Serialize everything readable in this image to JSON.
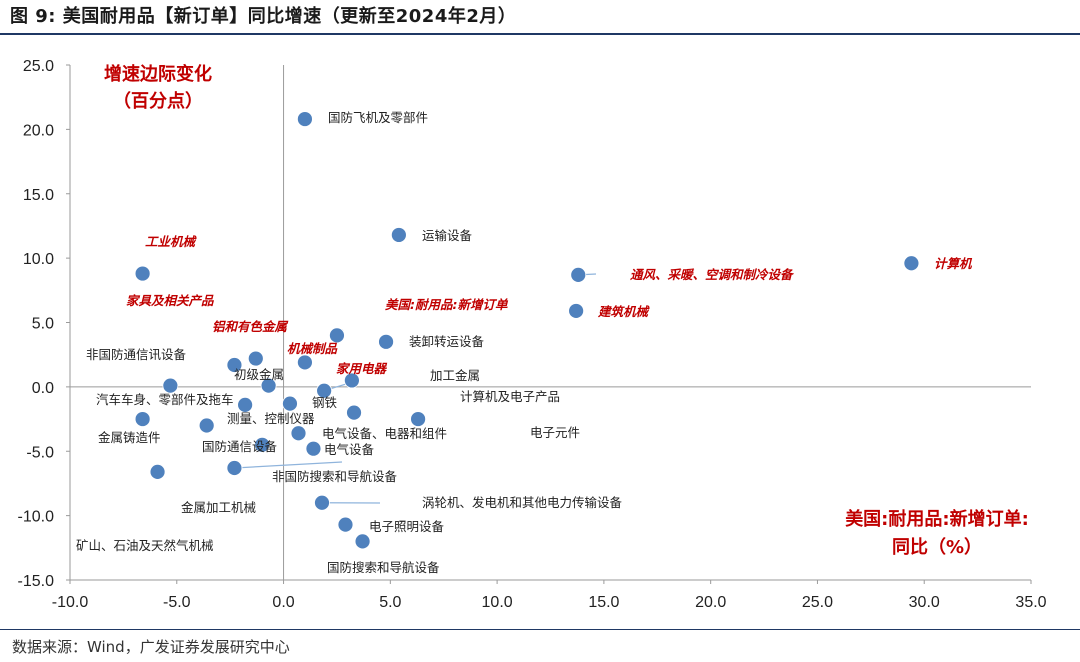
{
  "figure": {
    "title": "图 9:  美国耐用品【新订单】同比增速（更新至2024年2月）",
    "source": "数据来源：Wind，广发证券发展研究中心"
  },
  "chart_data": {
    "type": "scatter",
    "title": "",
    "xlabel": "美国:耐用品:新增订单:同比（%）",
    "ylabel": "增速边际变化（百分点）",
    "xlim": [
      -10,
      35
    ],
    "ylim": [
      -15,
      25
    ],
    "x_ticks": [
      "-10.0",
      "-5.0",
      "0.0",
      "5.0",
      "10.0",
      "15.0",
      "20.0",
      "25.0",
      "30.0",
      "35.0"
    ],
    "y_ticks": [
      "-15.0",
      "-10.0",
      "-5.0",
      "0.0",
      "5.0",
      "10.0",
      "15.0",
      "20.0",
      "25.0"
    ],
    "grid": false,
    "marker_color": "#4f81bd",
    "highlight_color": "#c00000",
    "points": [
      {
        "label": "国防飞机及零部件",
        "x": 1.0,
        "y": 20.8,
        "highlight": false
      },
      {
        "label": "运输设备",
        "x": 5.4,
        "y": 11.8,
        "highlight": false
      },
      {
        "label": "工业机械",
        "x": -6.6,
        "y": 8.8,
        "highlight": true
      },
      {
        "label": "计算机",
        "x": 29.4,
        "y": 9.6,
        "highlight": true
      },
      {
        "label": "通风、采暖、空调和制冷设备",
        "x": 13.8,
        "y": 8.7,
        "highlight": true
      },
      {
        "label": "建筑机械",
        "x": 13.7,
        "y": 5.9,
        "highlight": true
      },
      {
        "label": "家具及相关产品",
        "x": -2.3,
        "y": 1.7,
        "highlight": true
      },
      {
        "label": "铝和有色金属",
        "x": -1.3,
        "y": 2.2,
        "highlight": true
      },
      {
        "label": "美国:耐用品:新增订单",
        "x": 2.5,
        "y": 4.0,
        "highlight": true
      },
      {
        "label": "装卸转运设备",
        "x": 4.8,
        "y": 3.5,
        "highlight": false
      },
      {
        "label": "机械制品",
        "x": 1.0,
        "y": 1.9,
        "highlight": true
      },
      {
        "label": "家用电器",
        "x": 3.2,
        "y": 0.5,
        "highlight": true
      },
      {
        "label": "非国防通信讯设备",
        "x": -5.3,
        "y": 0.1,
        "highlight": false
      },
      {
        "label": "初级金属",
        "x": -0.7,
        "y": 0.1,
        "highlight": false
      },
      {
        "label": "加工金属",
        "x": 1.9,
        "y": -0.3,
        "highlight": false
      },
      {
        "label": "汽车车身、零部件及拖车",
        "x": -1.8,
        "y": -1.4,
        "highlight": false
      },
      {
        "label": "钢铁",
        "x": 0.3,
        "y": -1.3,
        "highlight": false
      },
      {
        "label": "计算机及电子产品",
        "x": 3.3,
        "y": -2.0,
        "highlight": false
      },
      {
        "label": "电子元件",
        "x": 6.3,
        "y": -2.5,
        "highlight": false
      },
      {
        "label": "金属铸造件",
        "x": -6.6,
        "y": -2.5,
        "highlight": false
      },
      {
        "label": "测量、控制仪器",
        "x": -3.6,
        "y": -3.0,
        "highlight": false
      },
      {
        "label": "电气设备、电器和组件",
        "x": 0.7,
        "y": -3.6,
        "highlight": false
      },
      {
        "label": "国防通信设备",
        "x": -1.0,
        "y": -4.5,
        "highlight": false
      },
      {
        "label": "电气设备",
        "x": 1.4,
        "y": -4.8,
        "highlight": false
      },
      {
        "label": "非国防搜索和导航设备",
        "x": -2.3,
        "y": -6.3,
        "highlight": false
      },
      {
        "label": "金属加工机械",
        "x": -2.3,
        "y": -6.3,
        "highlight": false
      },
      {
        "label": "矿山、石油及天然气机械",
        "x": -5.9,
        "y": -6.6,
        "highlight": false
      },
      {
        "label": "涡轮机、发电机和其他电力传输设备",
        "x": 1.8,
        "y": -9.0,
        "highlight": false
      },
      {
        "label": "电子照明设备",
        "x": 2.9,
        "y": -10.7,
        "highlight": false
      },
      {
        "label": "国防搜索和导航设备",
        "x": 3.7,
        "y": -12.0,
        "highlight": false
      }
    ]
  }
}
